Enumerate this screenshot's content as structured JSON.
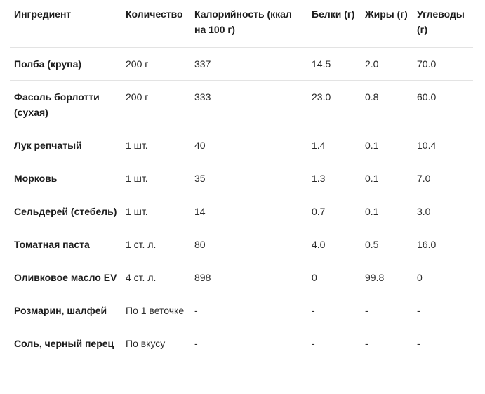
{
  "table": {
    "headers": [
      "Ингредиент",
      "Количество",
      "Калорийность (ккал на 100 г)",
      "Белки (г)",
      "Жиры (г)",
      "Углеводы (г)"
    ],
    "rows": [
      [
        "Полба (крупа)",
        "200 г",
        "337",
        "14.5",
        "2.0",
        "70.0"
      ],
      [
        "Фасоль борлотти (сухая)",
        "200 г",
        "333",
        "23.0",
        "0.8",
        "60.0"
      ],
      [
        "Лук репчатый",
        "1 шт.",
        "40",
        "1.4",
        "0.1",
        "10.4"
      ],
      [
        "Морковь",
        "1 шт.",
        "35",
        "1.3",
        "0.1",
        "7.0"
      ],
      [
        "Сельдерей (стебель)",
        "1 шт.",
        "14",
        "0.7",
        "0.1",
        "3.0"
      ],
      [
        "Томатная паста",
        "1 ст. л.",
        "80",
        "4.0",
        "0.5",
        "16.0"
      ],
      [
        "Оливковое масло EV",
        "4 ст. л.",
        "898",
        "0",
        "99.8",
        "0"
      ],
      [
        "Розмарин, шалфей",
        "По 1 веточке",
        "-",
        "-",
        "-",
        "-"
      ],
      [
        "Соль, черный перец",
        "По вкусу",
        "-",
        "-",
        "-",
        "-"
      ]
    ]
  }
}
